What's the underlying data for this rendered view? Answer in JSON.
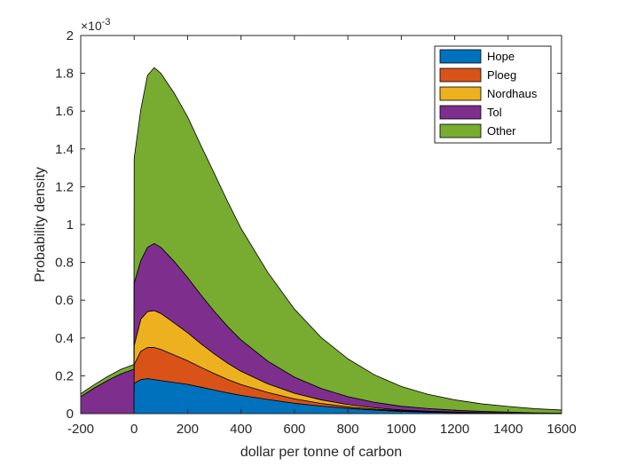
{
  "chart_data": {
    "type": "area",
    "stacked": true,
    "xlabel": "dollar per tonne of carbon",
    "ylabel": "Probability density",
    "y_multiplier_label": "×10",
    "y_multiplier_exponent": "-3",
    "xlim": [
      -200,
      1600
    ],
    "ylim": [
      0,
      2
    ],
    "xticks": [
      -200,
      0,
      200,
      400,
      600,
      800,
      1000,
      1200,
      1400,
      1600
    ],
    "yticks": [
      0,
      0.2,
      0.4,
      0.6,
      0.8,
      1,
      1.2,
      1.4,
      1.6,
      1.8,
      2
    ],
    "grid": false,
    "legend_position": "top-right",
    "x": [
      -200,
      -150,
      -100,
      -50,
      -1,
      0,
      25,
      50,
      75,
      100,
      150,
      200,
      250,
      300,
      350,
      400,
      500,
      600,
      700,
      800,
      900,
      1000,
      1100,
      1200,
      1300,
      1400,
      1500,
      1600
    ],
    "series": [
      {
        "name": "Hope",
        "color": "#0072BD",
        "values": [
          0,
          0,
          0,
          0,
          0,
          0.16,
          0.18,
          0.185,
          0.18,
          0.175,
          0.165,
          0.155,
          0.14,
          0.125,
          0.11,
          0.097,
          0.075,
          0.055,
          0.04,
          0.028,
          0.019,
          0.012,
          0.008,
          0.005,
          0.003,
          0.002,
          0.001,
          0.001
        ]
      },
      {
        "name": "Ploeg",
        "color": "#D95319",
        "values": [
          0,
          0,
          0,
          0,
          0,
          0.1,
          0.15,
          0.165,
          0.17,
          0.165,
          0.145,
          0.125,
          0.105,
          0.087,
          0.071,
          0.057,
          0.037,
          0.023,
          0.014,
          0.008,
          0.005,
          0.003,
          0.002,
          0.001,
          0.001,
          0,
          0,
          0
        ]
      },
      {
        "name": "Nordhaus",
        "color": "#EDB120",
        "values": [
          0,
          0,
          0,
          0,
          0,
          0.1,
          0.17,
          0.19,
          0.195,
          0.19,
          0.17,
          0.148,
          0.125,
          0.104,
          0.086,
          0.07,
          0.046,
          0.03,
          0.019,
          0.012,
          0.007,
          0.004,
          0.003,
          0.002,
          0.001,
          0.001,
          0,
          0
        ]
      },
      {
        "name": "Tol",
        "color": "#7E2F8E",
        "values": [
          0.09,
          0.135,
          0.175,
          0.21,
          0.235,
          0.33,
          0.31,
          0.34,
          0.355,
          0.35,
          0.325,
          0.292,
          0.258,
          0.225,
          0.194,
          0.166,
          0.12,
          0.085,
          0.06,
          0.042,
          0.029,
          0.02,
          0.014,
          0.01,
          0.007,
          0.005,
          0.003,
          0.002
        ]
      },
      {
        "name": "Other",
        "color": "#77AC30",
        "values": [
          0.015,
          0.018,
          0.021,
          0.024,
          0.025,
          0.66,
          0.8,
          0.91,
          0.93,
          0.92,
          0.89,
          0.85,
          0.79,
          0.73,
          0.66,
          0.59,
          0.47,
          0.36,
          0.27,
          0.2,
          0.145,
          0.105,
          0.075,
          0.055,
          0.04,
          0.03,
          0.022,
          0.016
        ]
      }
    ]
  }
}
